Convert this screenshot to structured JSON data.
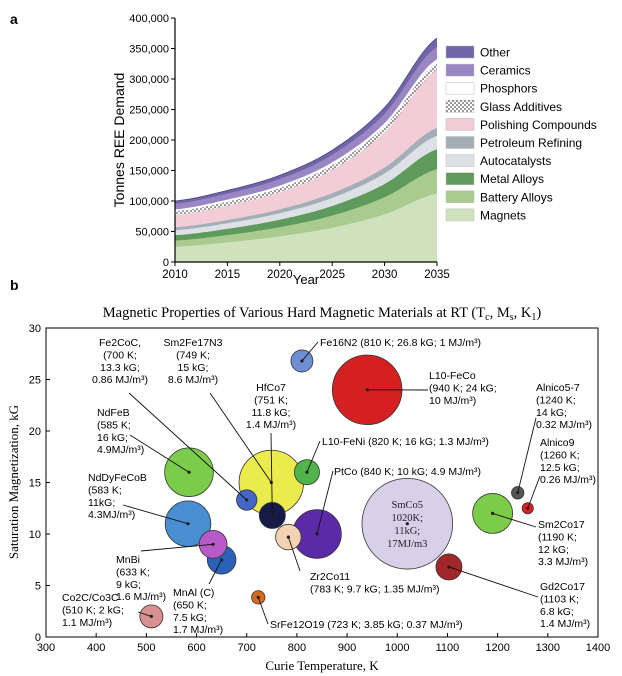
{
  "panel_a_label": "a",
  "panel_b_label": "b",
  "chart_data": [
    {
      "type": "area",
      "stacked": true,
      "x": [
        2010,
        2015,
        2020,
        2025,
        2030,
        2035
      ],
      "xlabel": "Year",
      "ylabel": "Tonnes REE Demand",
      "ylim": [
        0,
        400000
      ],
      "xticks": [
        "2010",
        "2015",
        "2020",
        "2025",
        "2030",
        "2035"
      ],
      "yticks": [
        "0",
        "50,000",
        "100,000",
        "150,000",
        "200,000",
        "250,000",
        "300,000",
        "350,000",
        "400,000"
      ],
      "legend_placement": "right",
      "series": [
        {
          "name": "Magnets",
          "color": "#cfe2bd",
          "values": [
            25000,
            32000,
            42000,
            56000,
            78000,
            112000
          ]
        },
        {
          "name": "Battery Alloys",
          "color": "#a9cc8e",
          "values": [
            10000,
            12000,
            15000,
            20000,
            28000,
            40000
          ]
        },
        {
          "name": "Metal Alloys",
          "color": "#5e9a5c",
          "values": [
            9000,
            10500,
            12500,
            16000,
            22000,
            33000
          ]
        },
        {
          "name": "Autocatalysts",
          "color": "#dde1e6",
          "values": [
            8000,
            9000,
            10500,
            13000,
            17000,
            22000
          ]
        },
        {
          "name": "Petroleum Refining",
          "color": "#a4aeb7",
          "values": [
            5000,
            5500,
            6500,
            8000,
            10000,
            13000
          ]
        },
        {
          "name": "Polishing Compounds",
          "color": "#f2ccd6",
          "values": [
            20000,
            23500,
            28000,
            38000,
            58000,
            95000
          ]
        },
        {
          "name": "Glass Additives",
          "color": "#ffffff",
          "pattern": "dots",
          "values": [
            6000,
            6500,
            7000,
            8000,
            9500,
            11000
          ]
        },
        {
          "name": "Phosphors",
          "color": "#ffffff",
          "values": [
            3000,
            3300,
            3700,
            4300,
            5200,
            6500
          ]
        },
        {
          "name": "Ceramics",
          "color": "#9b86c4",
          "values": [
            9000,
            9500,
            10500,
            12000,
            15000,
            20000
          ]
        },
        {
          "name": "Other",
          "color": "#6f65a8",
          "values": [
            5000,
            5500,
            6500,
            8000,
            10500,
            14500
          ]
        }
      ]
    },
    {
      "type": "scatter",
      "title_main": "Magnetic Properties of Various Hard Magnetic Materials at RT (T",
      "title_sub1": "c",
      "title_mid1": ", M",
      "title_sub2": "s",
      "title_mid2": ", K",
      "title_sub3": "1",
      "title_end": ")",
      "xlabel": "Curie Temperature, K",
      "ylabel": "Saturation Magnetization, kG",
      "xlim": [
        300,
        1400
      ],
      "ylim": [
        0,
        30
      ],
      "xticks": [
        "300",
        "400",
        "500",
        "600",
        "700",
        "800",
        "900",
        "1000",
        "1100",
        "1200",
        "1300",
        "1400"
      ],
      "yticks": [
        "0",
        "5",
        "10",
        "15",
        "20",
        "25",
        "30"
      ],
      "points": [
        {
          "id": "fe2coc",
          "x": 700,
          "y": 13.3,
          "k1": 0.86,
          "color": "#4466c8",
          "label": [
            "Fe2CoC,",
            "(700 K;",
            "13.3 kG;",
            "0.86 MJ/m³)"
          ]
        },
        {
          "id": "sm2fe17n3",
          "x": 749,
          "y": 15,
          "k1": 8.6,
          "color": "#eceb4e",
          "label": [
            "Sm2Fe17N3",
            "(749 K;",
            "15 kG;",
            "8.6 MJ/m³)"
          ]
        },
        {
          "id": "hfco7",
          "x": 751,
          "y": 11.8,
          "k1": 1.4,
          "color": "#151a48",
          "label": [
            "HfCo7",
            "(751 K;",
            "11.8 kG;",
            "1.4 MJ/m³)"
          ]
        },
        {
          "id": "fe16n2",
          "x": 810,
          "y": 26.8,
          "k1": 1,
          "color": "#6f8fd4",
          "label": [
            "Fe16N2 (810 K; 26.8 kG; 1 MJ/m³)"
          ]
        },
        {
          "id": "l10feco",
          "x": 940,
          "y": 24,
          "k1": 10,
          "color": "#d42020",
          "label": [
            "L10-FeCo",
            "(940 K; 24 kG;",
            "10 MJ/m³)"
          ]
        },
        {
          "id": "l10feni",
          "x": 820,
          "y": 16,
          "k1": 1.3,
          "color": "#4fb44a",
          "label": [
            "L10-FeNi (820 K; 16 kG; 1.3 MJ/m³)"
          ]
        },
        {
          "id": "ptco",
          "x": 840,
          "y": 10,
          "k1": 4.9,
          "color": "#5a2aa8",
          "label": [
            "PtCo (840 K; 10 kG; 4.9 MJ/m³)"
          ]
        },
        {
          "id": "ndfeb",
          "x": 585,
          "y": 16,
          "k1": 4.9,
          "color": "#7bcc4a",
          "label": [
            "NdFeB",
            "(585 K;",
            "16 kG;",
            "4.9MJ/m³)"
          ]
        },
        {
          "id": "ndfecob",
          "x": 583,
          "y": 11,
          "k1": 4.3,
          "color": "#4a8ed2",
          "label": [
            "NdDyFeCoB",
            "(583 K;",
            "11kG;",
            "4.3MJ/m³)"
          ]
        },
        {
          "id": "mnbi",
          "x": 633,
          "y": 9,
          "k1": 1.6,
          "color": "#b85ac8",
          "label": [
            "MnBi",
            "(633 K;",
            "9 kG;",
            "1.6 MJ/m³)"
          ]
        },
        {
          "id": "mnal",
          "x": 650,
          "y": 7.5,
          "k1": 1.7,
          "color": "#2a62b8",
          "label": [
            "MnAl (C)",
            "(650 K;",
            "7.5 kG;",
            "1.7 MJ/m³)"
          ]
        },
        {
          "id": "zr2co11",
          "x": 783,
          "y": 9.7,
          "k1": 1.35,
          "color": "#f2d2b0",
          "label": [
            "Zr2Co11",
            "(783 K; 9.7 kG; 1.35 MJ/m³)"
          ]
        },
        {
          "id": "smco5",
          "x": 1020,
          "y": 11,
          "k1": 17,
          "color": "#d8d0e8",
          "label": [
            "SmCo5",
            "1020K;",
            "11kG;",
            "17MJ/m3"
          ]
        },
        {
          "id": "alnico57",
          "x": 1240,
          "y": 14,
          "k1": 0.32,
          "color": "#555555",
          "label": [
            "Alnico5-7",
            "(1240 K;",
            "14 kG;",
            "0.32 MJ/m³)"
          ]
        },
        {
          "id": "alnico9",
          "x": 1260,
          "y": 12.5,
          "k1": 0.26,
          "color": "#e02020",
          "label": [
            "Alnico9",
            "(1260 K;",
            "12.5 kG;",
            "0.26 MJ/m³)"
          ]
        },
        {
          "id": "sm2co17",
          "x": 1190,
          "y": 12,
          "k1": 3.3,
          "color": "#7ccc4a",
          "label": [
            "Sm2Co17",
            "(1190 K;",
            "12 kG;",
            "3.3 MJ/m³)"
          ]
        },
        {
          "id": "gd2co17",
          "x": 1103,
          "y": 6.8,
          "k1": 1.4,
          "color": "#a02828",
          "label": [
            "Gd2Co17",
            "(1103 K;",
            "6.8 kG;",
            "1.4 MJ/m³)"
          ]
        },
        {
          "id": "co2c",
          "x": 510,
          "y": 2,
          "k1": 1.1,
          "color": "#d89090",
          "label": [
            "Co2C/Co3C",
            "(510 K; 2 kG;",
            "1.1 MJ/m³)"
          ]
        },
        {
          "id": "srfe12o19",
          "x": 723,
          "y": 3.85,
          "k1": 0.37,
          "color": "#d66a20",
          "label": [
            "SrFe12O19 (723 K; 3.85 kG; 0.37 MJ/m³)"
          ]
        }
      ]
    }
  ]
}
